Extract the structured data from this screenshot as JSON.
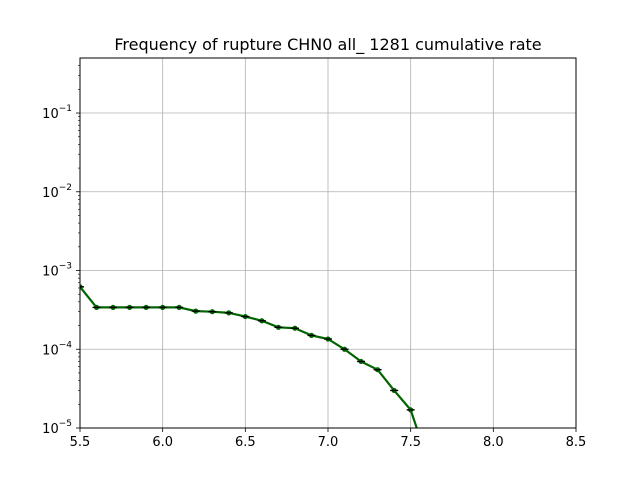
{
  "chart_data": {
    "type": "line",
    "title": "Frequency of rupture CHN0 all_ 1281 cumulative rate",
    "xlabel": "",
    "ylabel": "",
    "xlim": [
      5.5,
      8.5
    ],
    "ylim": [
      1e-05,
      0.5
    ],
    "yscale": "log",
    "grid": true,
    "x_ticks": [
      {
        "value": 5.5,
        "label": "5.5"
      },
      {
        "value": 6.0,
        "label": "6.0"
      },
      {
        "value": 6.5,
        "label": "6.5"
      },
      {
        "value": 7.0,
        "label": "7.0"
      },
      {
        "value": 7.5,
        "label": "7.5"
      },
      {
        "value": 8.0,
        "label": "8.0"
      },
      {
        "value": 8.5,
        "label": "8.5"
      }
    ],
    "y_ticks": [
      {
        "value": 1e-05,
        "base": "10",
        "exp": "−5"
      },
      {
        "value": 0.0001,
        "base": "10",
        "exp": "−4"
      },
      {
        "value": 0.001,
        "base": "10",
        "exp": "−3"
      },
      {
        "value": 0.01,
        "base": "10",
        "exp": "−2"
      },
      {
        "value": 0.1,
        "base": "10",
        "exp": "−1"
      }
    ],
    "series": [
      {
        "color": "#006400",
        "x": [
          5.5,
          5.6,
          5.7,
          5.8,
          5.9,
          6.0,
          6.1,
          6.2,
          6.3,
          6.4,
          6.5,
          6.6,
          6.7,
          6.8,
          6.9,
          7.0,
          7.1,
          7.2,
          7.3,
          7.4,
          7.5,
          7.6
        ],
        "y": [
          0.00062,
          0.00034,
          0.00034,
          0.00034,
          0.00034,
          0.00034,
          0.00034,
          0.000305,
          0.0003,
          0.00029,
          0.00026,
          0.00023,
          0.00019,
          0.000185,
          0.00015,
          0.000135,
          0.0001,
          7e-05,
          5.5e-05,
          3e-05,
          1.7e-05,
          4e-06
        ]
      }
    ]
  }
}
